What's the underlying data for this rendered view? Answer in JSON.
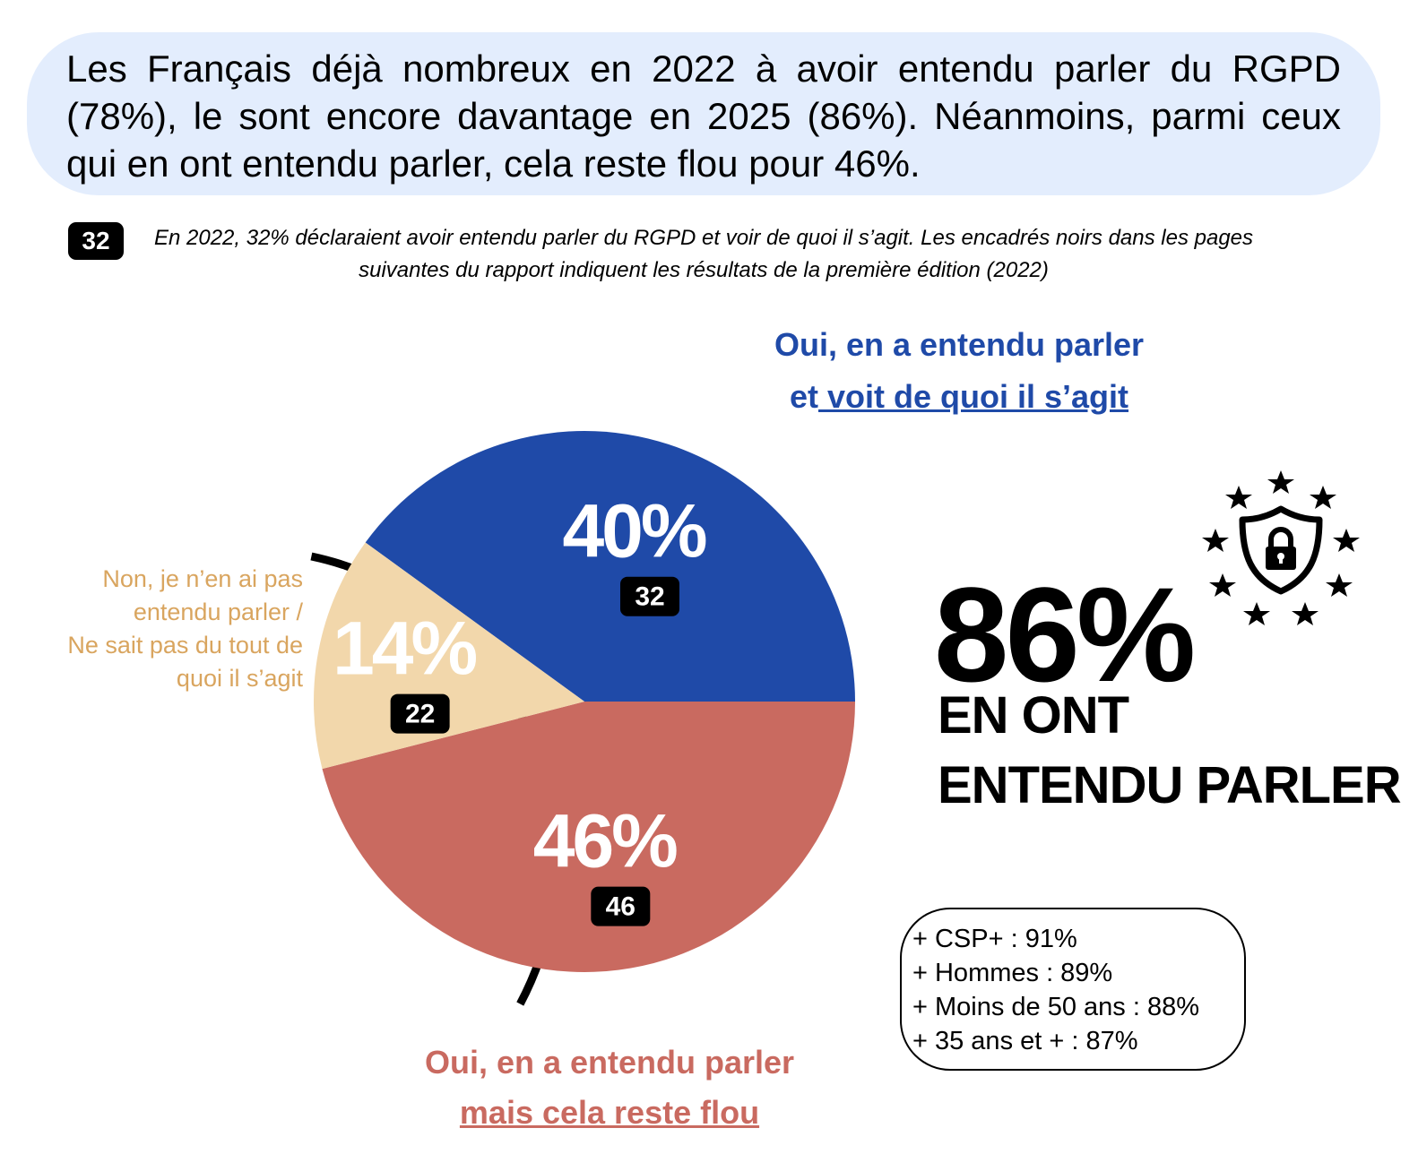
{
  "headline": "Les Français déjà nombreux en 2022 à avoir entendu parler du RGPD (78%), le sont encore davantage en 2025 (86%). Néanmoins, parmi ceux qui en ont entendu parler, cela reste flou pour 46%.",
  "note": {
    "badge": "32",
    "text": "En 2022, 32% déclaraient avoir entendu parler du RGPD et voir de quoi il s’agit. Les encadrés noirs dans les pages suivantes du rapport indiquent les résultats de la première édition (2022)"
  },
  "labels": {
    "blue_line1": "Oui, en a entendu parler",
    "blue_line2a": "et",
    "blue_line2b": " voit de quoi il s’agit",
    "red_line1": "Oui, en a entendu parler",
    "red_line2": "mais cela reste flou",
    "tan_lines": [
      "Non, je n’en ai pas",
      "entendu parler /",
      "Ne sait pas du tout de",
      "quoi il s’agit"
    ]
  },
  "highlight": {
    "value": "86%",
    "line1": "EN ONT",
    "line2": "ENTENDU PARLER"
  },
  "subgroups": [
    "+ CSP+ : 91%",
    "+ Hommes : 89%",
    "+ Moins de 50 ans : 88%",
    "+ 35 ans et + : 87%"
  ],
  "chart_data": {
    "type": "pie",
    "slices": [
      {
        "label": "Oui, en a entendu parler et voit de quoi il s’agit",
        "value": 40,
        "value_text": "40%",
        "previous": "32",
        "color": "#1f4aa8"
      },
      {
        "label": "Oui, en a entendu parler mais cela reste flou",
        "value": 46,
        "value_text": "46%",
        "previous": "46",
        "color": "#c96a60"
      },
      {
        "label": "Non, je n’en ai pas entendu parler / Ne sait pas du tout de quoi il s’agit",
        "value": 14,
        "value_text": "14%",
        "previous": "22",
        "color": "#f2d7ab"
      }
    ]
  },
  "icon": "shield-lock-stars-icon"
}
